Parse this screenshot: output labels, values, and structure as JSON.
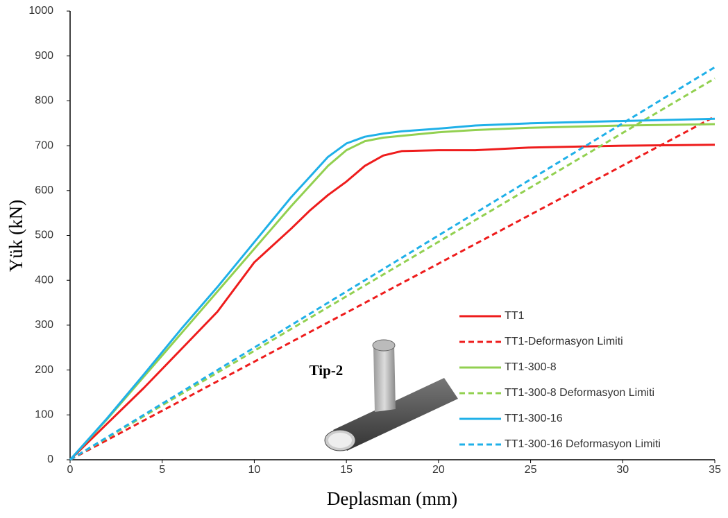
{
  "chart_data": {
    "type": "line",
    "x_label": "Deplasman (mm)",
    "y_label": "Yük (kN)",
    "inset_label": "Tip-2",
    "xlim": [
      0,
      35
    ],
    "xticks": [
      0,
      5,
      10,
      15,
      20,
      25,
      30,
      35
    ],
    "ylim": [
      0,
      1000
    ],
    "yticks": [
      0,
      100,
      200,
      300,
      400,
      500,
      600,
      700,
      800,
      900,
      1000
    ],
    "grid": false,
    "legend": "lower-right",
    "series": [
      {
        "name": "TT1",
        "color": "#ee1c1c",
        "dashed": false,
        "x": [
          0,
          2,
          4,
          6,
          8,
          10,
          12,
          13,
          14,
          15,
          16,
          17,
          18,
          20,
          22,
          25,
          30,
          35
        ],
        "values": [
          0,
          80,
          160,
          245,
          330,
          440,
          515,
          555,
          590,
          620,
          655,
          678,
          688,
          690,
          690,
          696,
          700,
          702
        ]
      },
      {
        "name": "TT1-Deformasyon Limiti",
        "color": "#ee1c1c",
        "dashed": true,
        "x": [
          0,
          35
        ],
        "values": [
          0,
          765
        ]
      },
      {
        "name": "TT1-300-8",
        "color": "#92d050",
        "dashed": false,
        "x": [
          0,
          2,
          4,
          6,
          8,
          10,
          12,
          13,
          14,
          15,
          16,
          17,
          18,
          20,
          22,
          25,
          30,
          35
        ],
        "values": [
          0,
          90,
          185,
          280,
          375,
          470,
          565,
          610,
          655,
          690,
          710,
          718,
          722,
          730,
          735,
          740,
          745,
          748
        ]
      },
      {
        "name": "TT1-300-8 Deformasyon Limiti",
        "color": "#92d050",
        "dashed": true,
        "x": [
          0,
          35
        ],
        "values": [
          0,
          850
        ]
      },
      {
        "name": "TT1-300-16",
        "color": "#1fb0e8",
        "dashed": false,
        "x": [
          0,
          2,
          4,
          6,
          8,
          10,
          12,
          13,
          14,
          15,
          16,
          17,
          18,
          20,
          22,
          25,
          30,
          35
        ],
        "values": [
          0,
          92,
          190,
          290,
          385,
          485,
          585,
          630,
          675,
          705,
          720,
          727,
          732,
          738,
          745,
          750,
          755,
          760
        ]
      },
      {
        "name": "TT1-300-16 Deformasyon Limiti",
        "color": "#1fb0e8",
        "dashed": true,
        "x": [
          0,
          35
        ],
        "values": [
          0,
          875
        ]
      }
    ]
  }
}
